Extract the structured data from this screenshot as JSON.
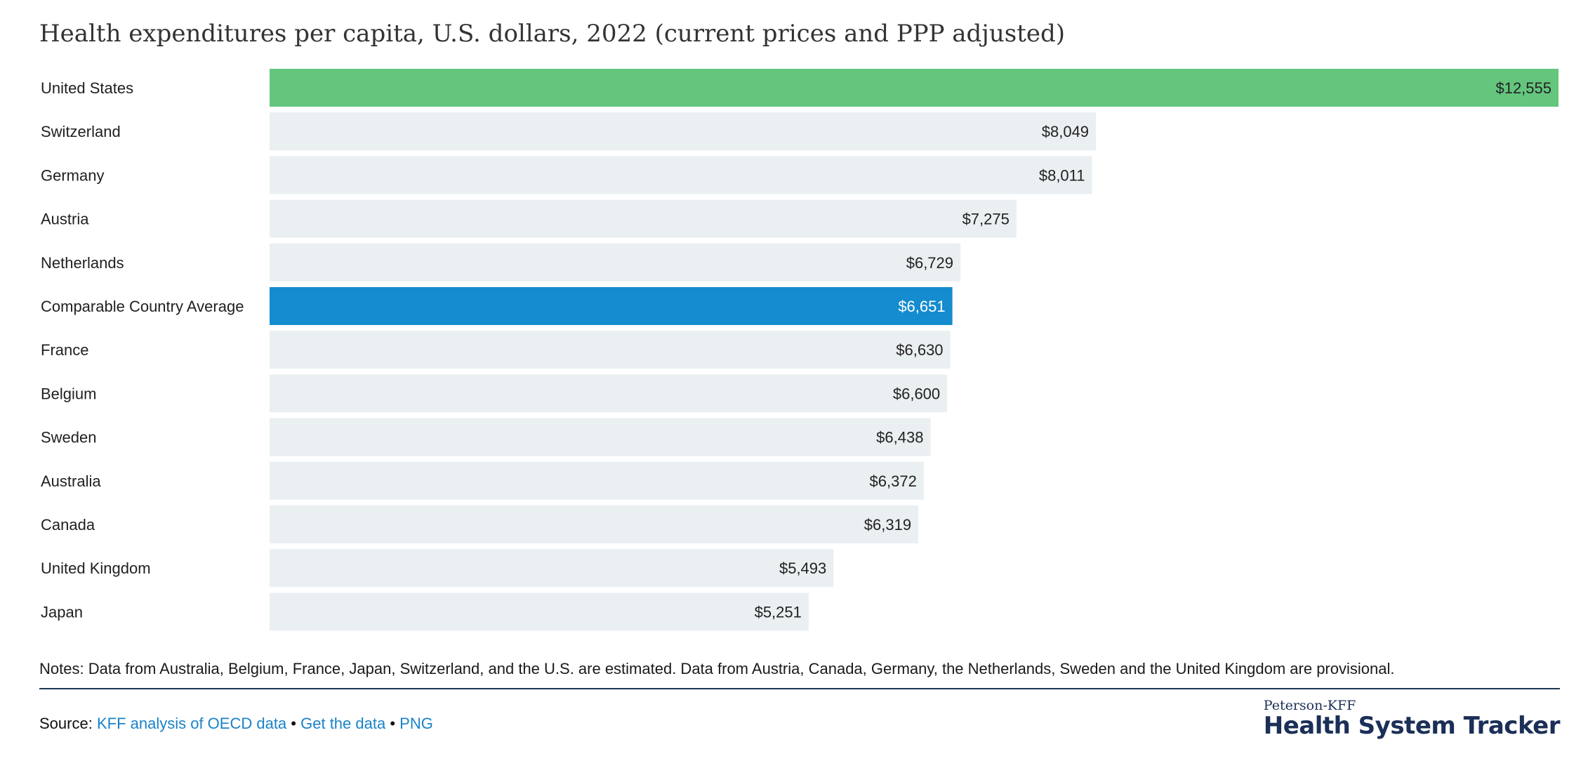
{
  "chart_data": {
    "type": "bar",
    "orientation": "horizontal",
    "title": "Health expenditures per capita, U.S. dollars, 2022 (current prices and PPP adjusted)",
    "categories": [
      "United States",
      "Switzerland",
      "Germany",
      "Austria",
      "Netherlands",
      "Comparable Country Average",
      "France",
      "Belgium",
      "Sweden",
      "Australia",
      "Canada",
      "United Kingdom",
      "Japan"
    ],
    "values": [
      12555,
      8049,
      8011,
      7275,
      6729,
      6651,
      6630,
      6600,
      6438,
      6372,
      6319,
      5493,
      5251
    ],
    "value_labels": [
      "$12,555",
      "$8,049",
      "$8,011",
      "$7,275",
      "$6,729",
      "$6,651",
      "$6,630",
      "$6,600",
      "$6,438",
      "$6,372",
      "$6,319",
      "$5,493",
      "$5,251"
    ],
    "xlim": [
      0,
      12555
    ],
    "grid": false,
    "colors": {
      "default": "#eaeff2",
      "highlight_us": "#64c57d",
      "highlight_average": "#148ccf"
    },
    "highlights": {
      "United States": "highlight_us",
      "Comparable Country Average": "highlight_average"
    }
  },
  "notes": "Notes: Data from Australia, Belgium, France, Japan, Switzerland, and the U.S. are estimated. Data from Austria, Canada, Germany, the Netherlands, Sweden and the United Kingdom are provisional.",
  "source": {
    "prefix": "Source:",
    "link_analysis": "KFF analysis of OECD data",
    "separator": "•",
    "link_data": "Get the data",
    "link_png": "PNG"
  },
  "logo": {
    "top": "Peterson-KFF",
    "main": "Health System Tracker"
  }
}
